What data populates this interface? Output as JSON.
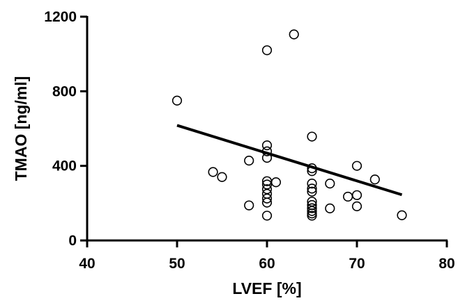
{
  "chart_data": {
    "type": "scatter",
    "xlabel": "LVEF [%]",
    "ylabel": "TMAO [ng/ml]",
    "xlim": [
      40,
      80
    ],
    "ylim": [
      0,
      1200
    ],
    "xticks": [
      40,
      50,
      60,
      70,
      80
    ],
    "yticks": [
      0,
      400,
      800,
      1200
    ],
    "xtick_labels": [
      "40",
      "50",
      "60",
      "70",
      "80"
    ],
    "ytick_labels": [
      "0",
      "400",
      "800",
      "1200"
    ],
    "grid": false,
    "points": [
      {
        "x": 50,
        "y": 750
      },
      {
        "x": 54,
        "y": 367
      },
      {
        "x": 55,
        "y": 340
      },
      {
        "x": 58,
        "y": 428
      },
      {
        "x": 58,
        "y": 188
      },
      {
        "x": 60,
        "y": 1020
      },
      {
        "x": 60,
        "y": 510
      },
      {
        "x": 60,
        "y": 478
      },
      {
        "x": 60,
        "y": 443
      },
      {
        "x": 60,
        "y": 318
      },
      {
        "x": 60,
        "y": 300
      },
      {
        "x": 60,
        "y": 275
      },
      {
        "x": 60,
        "y": 250
      },
      {
        "x": 60,
        "y": 225
      },
      {
        "x": 60,
        "y": 203
      },
      {
        "x": 60,
        "y": 133
      },
      {
        "x": 61,
        "y": 312
      },
      {
        "x": 63,
        "y": 1105
      },
      {
        "x": 65,
        "y": 557
      },
      {
        "x": 65,
        "y": 387
      },
      {
        "x": 65,
        "y": 372
      },
      {
        "x": 65,
        "y": 305
      },
      {
        "x": 65,
        "y": 278
      },
      {
        "x": 65,
        "y": 262
      },
      {
        "x": 65,
        "y": 208
      },
      {
        "x": 65,
        "y": 190
      },
      {
        "x": 65,
        "y": 173
      },
      {
        "x": 65,
        "y": 158
      },
      {
        "x": 65,
        "y": 145
      },
      {
        "x": 65,
        "y": 133
      },
      {
        "x": 67,
        "y": 305
      },
      {
        "x": 67,
        "y": 172
      },
      {
        "x": 69,
        "y": 235
      },
      {
        "x": 70,
        "y": 400
      },
      {
        "x": 70,
        "y": 243
      },
      {
        "x": 70,
        "y": 183
      },
      {
        "x": 72,
        "y": 327
      },
      {
        "x": 75,
        "y": 135
      }
    ],
    "trendline": {
      "x1": 50,
      "y1": 617,
      "x2": 75,
      "y2": 245
    }
  }
}
